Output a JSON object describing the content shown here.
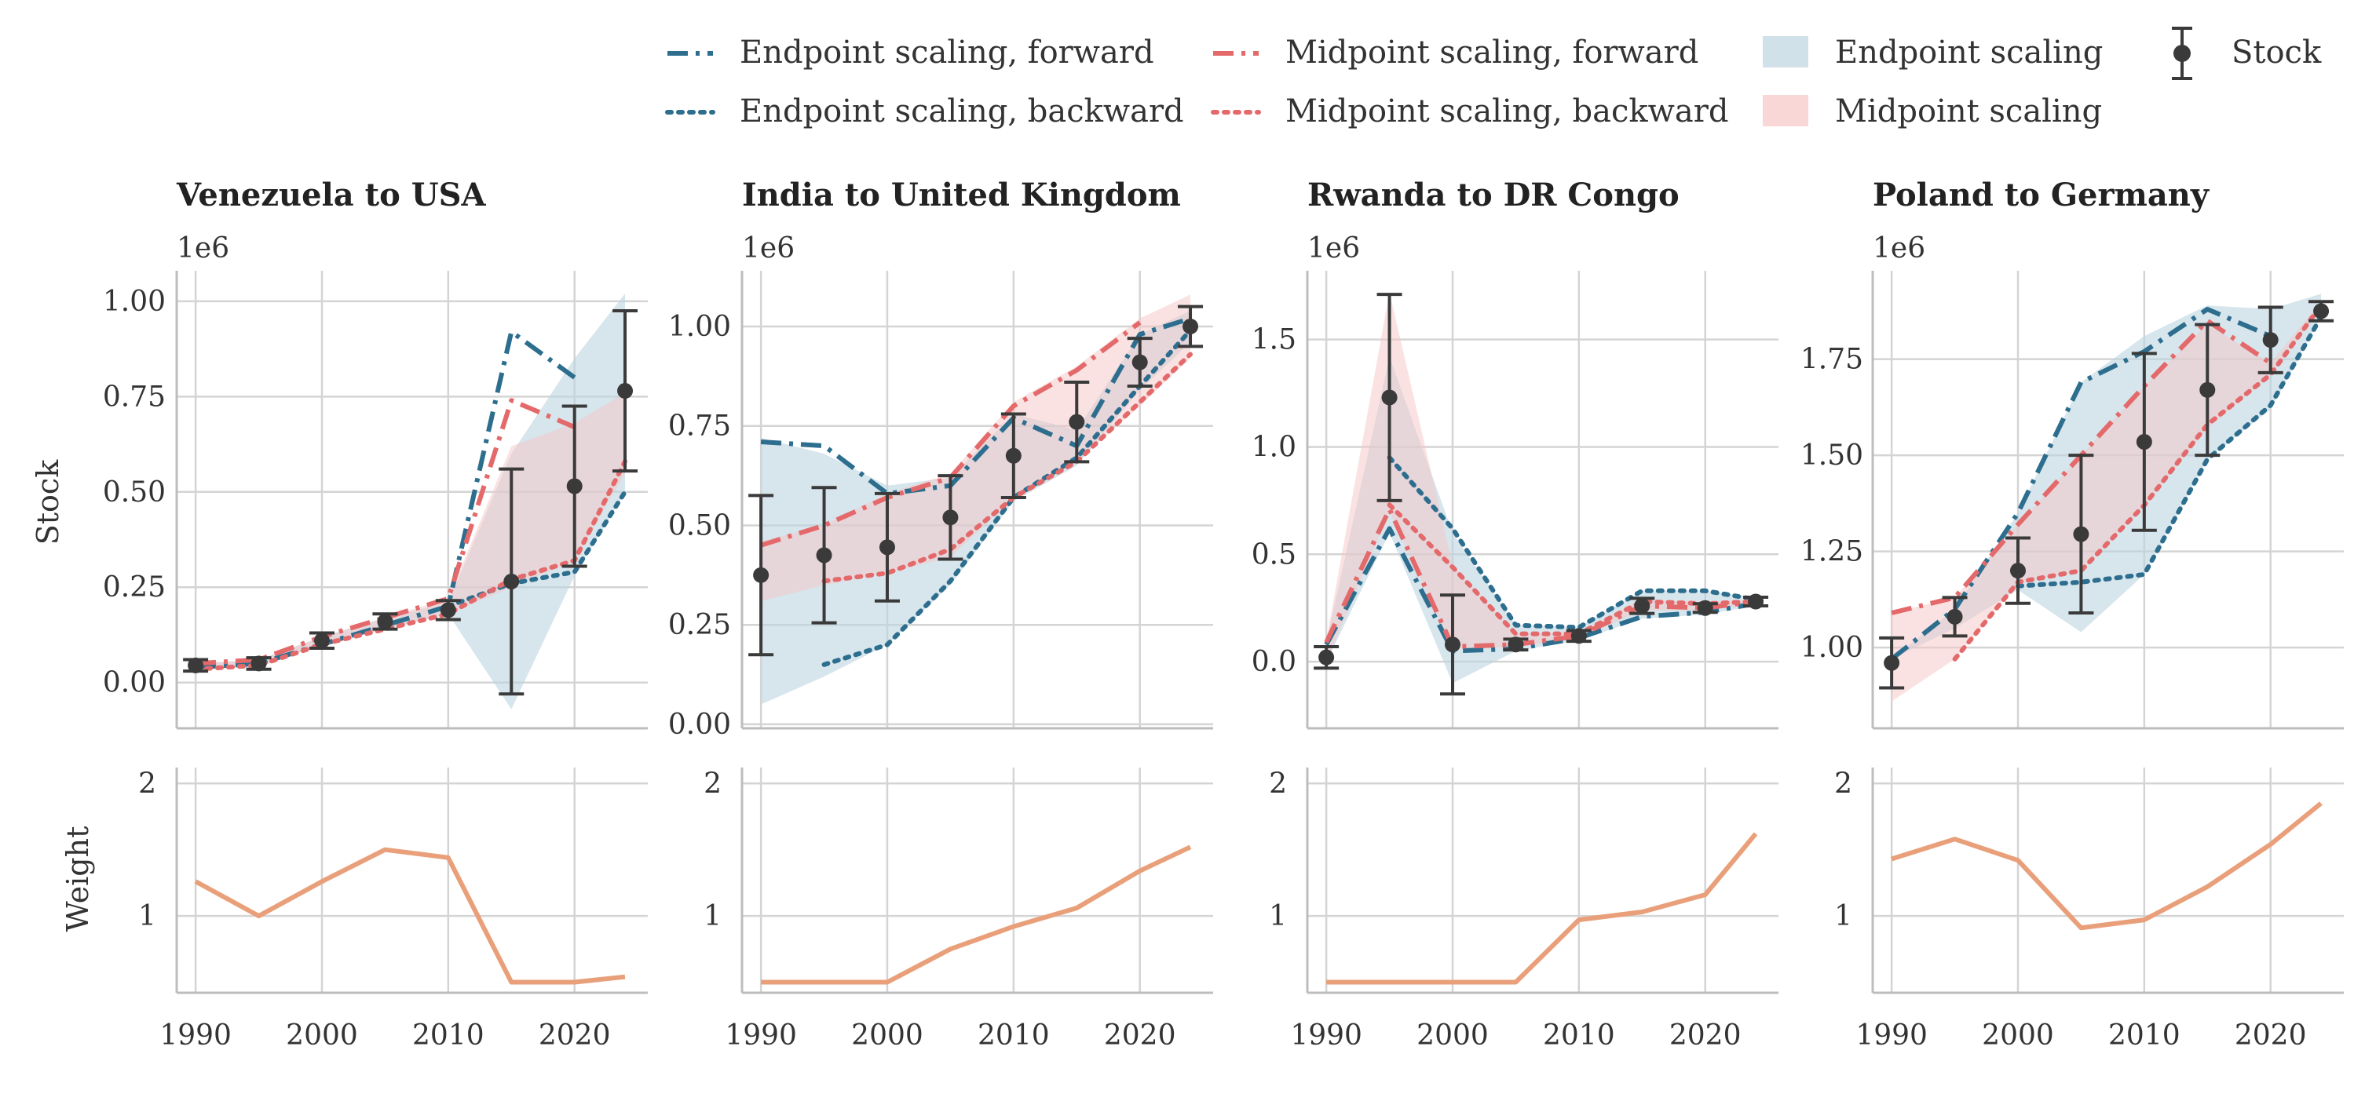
{
  "colors": {
    "endpoint": "#2d6e8e",
    "midpoint": "#e4696a",
    "endpoint_band": "#bcd4df",
    "midpoint_band": "#f6c6c6",
    "stock": "#3a3a3a",
    "weight": "#e9a07a",
    "grid": "#d4d4d4"
  },
  "legend": {
    "items": [
      {
        "label": "Endpoint scaling, forward",
        "kind": "line",
        "color": "endpoint",
        "dash": "dashdot"
      },
      {
        "label": "Endpoint scaling, backward",
        "kind": "line",
        "color": "endpoint",
        "dash": "dotted"
      },
      {
        "label": "Midpoint scaling, forward",
        "kind": "line",
        "color": "midpoint",
        "dash": "dashdot"
      },
      {
        "label": "Midpoint scaling, backward",
        "kind": "line",
        "color": "midpoint",
        "dash": "dotted"
      },
      {
        "label": "Endpoint scaling",
        "kind": "band",
        "color": "endpoint_band"
      },
      {
        "label": "Midpoint scaling",
        "kind": "band",
        "color": "midpoint_band"
      },
      {
        "label": "Stock",
        "kind": "errorbar",
        "color": "stock"
      }
    ]
  },
  "row_labels": {
    "top": "Stock",
    "bottom": "Weight"
  },
  "chart_data": [
    {
      "type": "line",
      "title": "Venezuela to USA",
      "sci_label": "1e6",
      "xlabel": "",
      "ylabel": "Stock",
      "xlim": [
        1988.5,
        2025.8
      ],
      "xticks": [
        1990,
        2000,
        2010,
        2020
      ],
      "ylim": [
        -0.12,
        1.08
      ],
      "yticks": [
        0.0,
        0.25,
        0.5,
        0.75,
        1.0
      ],
      "ytick_labels": [
        "0.00",
        "0.25",
        "0.50",
        "0.75",
        "1.00"
      ],
      "yaxis_side": "left",
      "x": [
        1990,
        1995,
        2000,
        2005,
        2010,
        2015,
        2020,
        2024
      ],
      "stock": [
        0.045,
        0.05,
        0.11,
        0.16,
        0.19,
        0.265,
        0.515,
        0.765
      ],
      "stock_err": [
        0.015,
        0.015,
        0.02,
        0.02,
        0.025,
        0.295,
        0.21,
        0.21
      ],
      "endpoint_forward": [
        0.04,
        0.05,
        0.1,
        0.15,
        0.2,
        0.92,
        0.8,
        null
      ],
      "endpoint_backward": [
        null,
        null,
        null,
        null,
        0.2,
        0.26,
        0.29,
        0.5
      ],
      "midpoint_forward": [
        0.05,
        0.06,
        0.12,
        0.17,
        0.22,
        0.74,
        0.67,
        null
      ],
      "midpoint_backward": [
        0.035,
        0.045,
        0.1,
        0.14,
        0.18,
        0.27,
        0.32,
        0.58
      ],
      "endpoint_band_upper": [
        0.05,
        0.06,
        0.12,
        0.17,
        0.21,
        0.6,
        0.85,
        1.02
      ],
      "endpoint_band_lower": [
        0.035,
        0.04,
        0.1,
        0.14,
        0.18,
        -0.07,
        0.28,
        0.5
      ],
      "midpoint_band_upper": [
        0.05,
        0.06,
        0.12,
        0.17,
        0.22,
        0.62,
        0.68,
        0.76
      ],
      "midpoint_band_lower": [
        0.035,
        0.045,
        0.1,
        0.14,
        0.18,
        0.25,
        0.32,
        0.55
      ],
      "weight": {
        "x": [
          1990,
          1995,
          2000,
          2005,
          2010,
          2015,
          2020,
          2024
        ],
        "values": [
          1.26,
          1.0,
          1.26,
          1.5,
          1.44,
          0.5,
          0.5,
          0.54
        ],
        "ylim": [
          0.42,
          2.12
        ],
        "yticks": [
          1,
          2
        ]
      }
    },
    {
      "type": "line",
      "title": "India to United Kingdom",
      "sci_label": "1e6",
      "xlabel": "",
      "ylabel": "",
      "xlim": [
        1988.5,
        2025.8
      ],
      "xticks": [
        1990,
        2000,
        2010,
        2020
      ],
      "ylim": [
        -0.01,
        1.14
      ],
      "yticks": [
        0.0,
        0.25,
        0.5,
        0.75,
        1.0
      ],
      "ytick_labels": [
        "0.00",
        "0.25",
        "0.50",
        "0.75",
        "1.00"
      ],
      "yaxis_side": "left",
      "x": [
        1990,
        1995,
        2000,
        2005,
        2010,
        2015,
        2020,
        2024
      ],
      "stock": [
        0.375,
        0.425,
        0.445,
        0.52,
        0.675,
        0.76,
        0.91,
        1.0
      ],
      "stock_err": [
        0.2,
        0.17,
        0.135,
        0.105,
        0.105,
        0.1,
        0.06,
        0.05
      ],
      "endpoint_forward": [
        0.71,
        0.7,
        0.58,
        0.6,
        0.77,
        0.7,
        0.98,
        1.02
      ],
      "endpoint_backward": [
        null,
        0.15,
        0.2,
        0.36,
        0.57,
        0.67,
        0.85,
        0.99
      ],
      "midpoint_forward": [
        0.45,
        0.5,
        0.57,
        0.62,
        0.8,
        0.89,
        1.01,
        null
      ],
      "midpoint_backward": [
        null,
        0.36,
        0.38,
        0.44,
        0.57,
        0.66,
        0.81,
        0.93
      ],
      "endpoint_band_upper": [
        0.72,
        0.68,
        0.6,
        0.62,
        0.78,
        0.74,
        0.98,
        1.04
      ],
      "endpoint_band_lower": [
        0.05,
        0.12,
        0.2,
        0.35,
        0.56,
        0.65,
        0.84,
        0.96
      ],
      "midpoint_band_upper": [
        0.46,
        0.5,
        0.58,
        0.63,
        0.81,
        0.9,
        1.02,
        1.08
      ],
      "midpoint_band_lower": [
        0.31,
        0.35,
        0.38,
        0.42,
        0.57,
        0.66,
        0.8,
        0.92
      ],
      "weight": {
        "x": [
          1990,
          1995,
          2000,
          2005,
          2010,
          2015,
          2020,
          2024
        ],
        "values": [
          0.5,
          0.5,
          0.5,
          0.75,
          0.92,
          1.06,
          1.34,
          1.52
        ],
        "ylim": [
          0.42,
          2.12
        ],
        "yticks": [
          1,
          2
        ]
      }
    },
    {
      "type": "line",
      "title": "Rwanda to DR Congo",
      "sci_label": "1e6",
      "xlabel": "",
      "ylabel": "",
      "xlim": [
        1988.5,
        2025.8
      ],
      "xticks": [
        1990,
        2000,
        2010,
        2020
      ],
      "ylim": [
        -0.31,
        1.82
      ],
      "yticks": [
        0.0,
        0.5,
        1.0,
        1.5
      ],
      "ytick_labels": [
        "0.0",
        "0.5",
        "1.0",
        "1.5"
      ],
      "yaxis_side": "left",
      "x": [
        1990,
        1995,
        2000,
        2005,
        2010,
        2015,
        2020,
        2024
      ],
      "stock": [
        0.02,
        1.23,
        0.08,
        0.08,
        0.12,
        0.26,
        0.25,
        0.28
      ],
      "stock_err": [
        0.05,
        0.48,
        0.23,
        0.025,
        0.025,
        0.035,
        0.02,
        0.02
      ],
      "endpoint_forward": [
        0.08,
        0.62,
        0.05,
        0.06,
        0.11,
        0.21,
        0.23,
        0.27
      ],
      "endpoint_backward": [
        null,
        0.95,
        0.62,
        0.17,
        0.16,
        0.33,
        0.33,
        0.29
      ],
      "midpoint_forward": [
        0.09,
        0.71,
        0.07,
        0.08,
        0.12,
        0.26,
        0.25,
        0.28
      ],
      "midpoint_backward": [
        null,
        0.73,
        0.44,
        0.13,
        0.13,
        0.28,
        0.27,
        0.28
      ],
      "endpoint_band_upper": [
        0.09,
        1.42,
        0.6,
        0.17,
        0.16,
        0.33,
        0.33,
        0.3
      ],
      "endpoint_band_lower": [
        0.0,
        0.6,
        -0.1,
        0.05,
        0.1,
        0.2,
        0.22,
        0.26
      ],
      "midpoint_band_upper": [
        0.1,
        1.72,
        0.45,
        0.13,
        0.14,
        0.29,
        0.28,
        0.29
      ],
      "midpoint_band_lower": [
        0.0,
        0.7,
        0.06,
        0.07,
        0.11,
        0.24,
        0.24,
        0.27
      ],
      "weight": {
        "x": [
          1990,
          1995,
          2000,
          2005,
          2010,
          2015,
          2020,
          2024
        ],
        "values": [
          0.5,
          0.5,
          0.5,
          0.5,
          0.97,
          1.03,
          1.16,
          1.62
        ],
        "ylim": [
          0.42,
          2.12
        ],
        "yticks": [
          1,
          2
        ]
      }
    },
    {
      "type": "line",
      "title": "Poland to Germany",
      "sci_label": "1e6",
      "xlabel": "",
      "ylabel": "",
      "xlim": [
        1988.5,
        2025.8
      ],
      "xticks": [
        1990,
        2000,
        2010,
        2020
      ],
      "ylim": [
        0.79,
        1.98
      ],
      "yticks": [
        1.0,
        1.25,
        1.5,
        1.75
      ],
      "ytick_labels": [
        "1.00",
        "1.25",
        "1.50",
        "1.75"
      ],
      "yaxis_side": "right",
      "x": [
        1990,
        1995,
        2000,
        2005,
        2010,
        2015,
        2020,
        2024
      ],
      "stock": [
        0.96,
        1.08,
        1.2,
        1.295,
        1.535,
        1.67,
        1.8,
        1.875
      ],
      "stock_err": [
        0.065,
        0.05,
        0.085,
        0.205,
        0.23,
        0.17,
        0.085,
        0.025
      ],
      "endpoint_forward": [
        0.97,
        1.1,
        1.35,
        1.69,
        1.77,
        1.88,
        1.81,
        null
      ],
      "endpoint_backward": [
        null,
        null,
        1.16,
        1.17,
        1.19,
        1.49,
        1.63,
        1.86
      ],
      "midpoint_forward": [
        1.09,
        1.13,
        1.32,
        1.5,
        1.68,
        1.85,
        1.74,
        null
      ],
      "midpoint_backward": [
        null,
        0.97,
        1.17,
        1.2,
        1.37,
        1.58,
        1.71,
        1.89
      ],
      "endpoint_band_upper": [
        0.97,
        1.1,
        1.35,
        1.69,
        1.81,
        1.89,
        1.88,
        1.92
      ],
      "endpoint_band_lower": [
        0.97,
        1.05,
        1.15,
        1.04,
        1.19,
        1.49,
        1.62,
        1.86
      ],
      "midpoint_band_upper": [
        1.09,
        1.13,
        1.32,
        1.5,
        1.68,
        1.84,
        1.74,
        1.9
      ],
      "midpoint_band_lower": [
        0.86,
        0.97,
        1.17,
        1.2,
        1.37,
        1.57,
        1.71,
        1.88
      ],
      "weight": {
        "x": [
          1990,
          1995,
          2000,
          2005,
          2010,
          2015,
          2020,
          2024
        ],
        "values": [
          1.43,
          1.58,
          1.42,
          0.91,
          0.97,
          1.22,
          1.54,
          1.85
        ],
        "ylim": [
          0.42,
          2.12
        ],
        "yticks": [
          1,
          2
        ]
      }
    }
  ]
}
